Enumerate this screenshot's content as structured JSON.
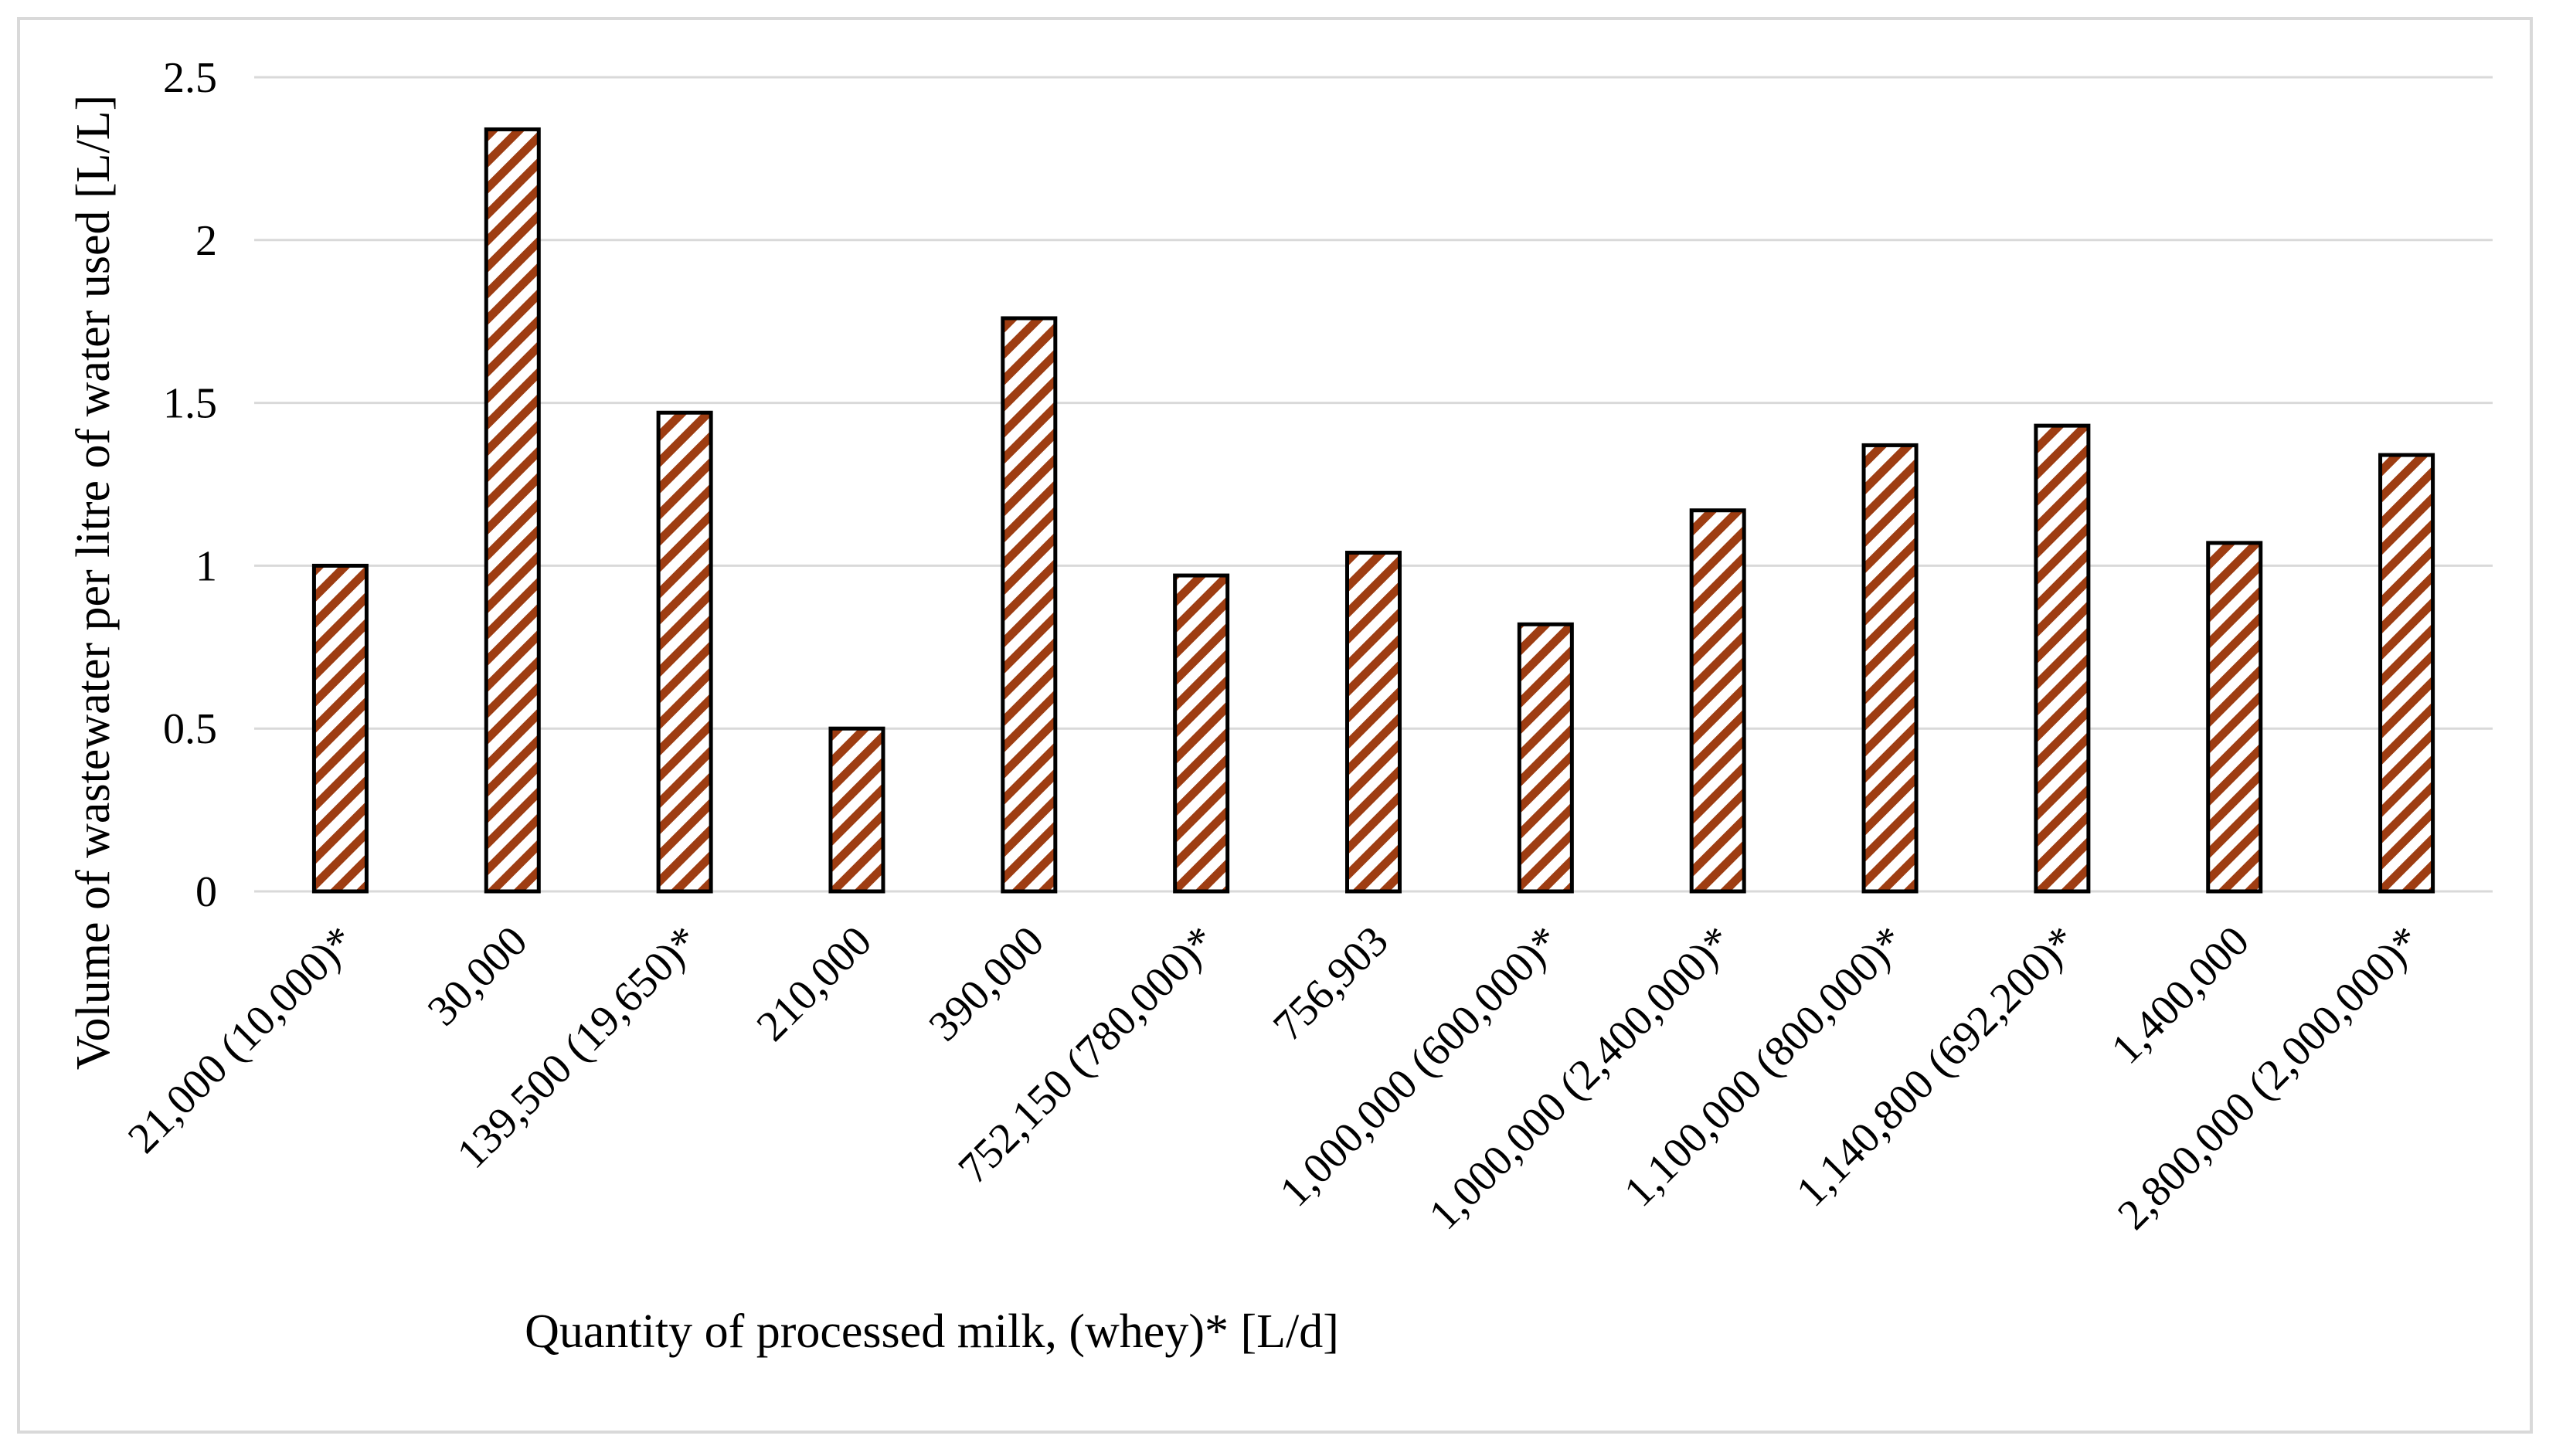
{
  "chart_data": {
    "type": "bar",
    "title": "",
    "xlabel": "Quantity of processed milk, (whey)* [L/d]",
    "ylabel": "Volume of wastewater per litre of water used [L/L]",
    "ylim": [
      0,
      2.5
    ],
    "yticks": [
      0,
      0.5,
      1,
      1.5,
      2,
      2.5
    ],
    "ytick_labels": [
      "0",
      "0.5",
      "1",
      "1.5",
      "2",
      "2.5"
    ],
    "grid": true,
    "legend": "none",
    "categories": [
      "21,000 (10,000)*",
      "30,000",
      "139,500 (19,650)*",
      "210,000",
      "390,000",
      "752,150 (780,000)*",
      "756,903",
      "1,000,000 (600,000)*",
      "1,000,000 (2,400,000)*",
      "1,100,000 (800,000)*",
      "1,140,800 (692,200)*",
      "1,400,000",
      "2,800,000 (2,000,000)*"
    ],
    "values": [
      1.0,
      2.34,
      1.47,
      0.5,
      1.76,
      0.97,
      1.04,
      0.82,
      1.17,
      1.37,
      1.43,
      1.07,
      1.34
    ],
    "colors": {
      "bar_stripe": "#9e3d12",
      "bar_background": "#ffffff",
      "bar_outline": "#000000",
      "gridline": "#d9d9d9",
      "text": "#000000"
    }
  }
}
